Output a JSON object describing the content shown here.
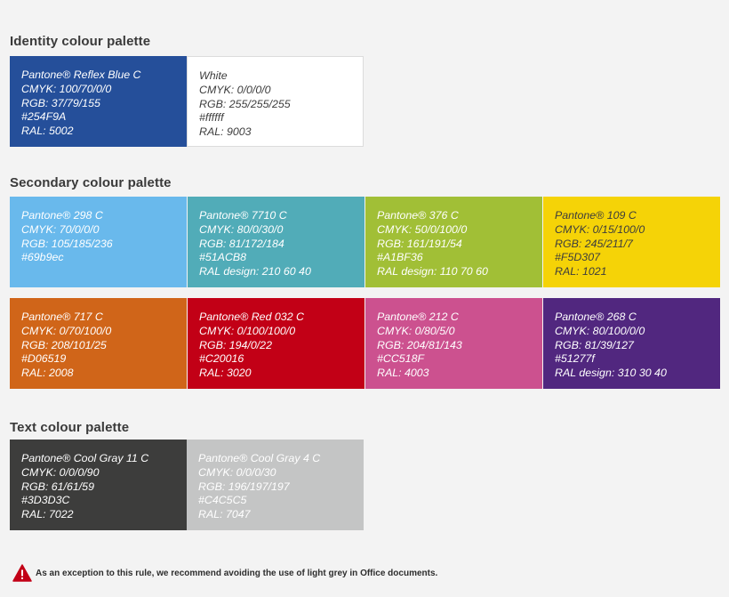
{
  "identity": {
    "title": "Identity colour palette",
    "swatches": [
      {
        "bg": "#254F9A",
        "text_color": "#ffffff",
        "lines": [
          "Pantone® Reflex Blue C",
          "CMYK: 100/70/0/0",
          "RGB: 37/79/155",
          "#254F9A",
          "RAL: 5002"
        ]
      },
      {
        "bg": "#ffffff",
        "text_color": "#3d3d3d",
        "lines": [
          "White",
          "CMYK: 0/0/0/0",
          "RGB: 255/255/255",
          "#ffffff",
          "RAL: 9003"
        ]
      }
    ]
  },
  "secondary": {
    "title": "Secondary colour palette",
    "swatches": [
      {
        "bg": "#69b9ec",
        "text_color": "#ffffff",
        "lines": [
          "Pantone® 298 C",
          "CMYK: 70/0/0/0",
          "RGB: 105/185/236",
          "#69b9ec"
        ]
      },
      {
        "bg": "#51ACB8",
        "text_color": "#ffffff",
        "lines": [
          "Pantone® 7710 C",
          "CMYK: 80/0/30/0",
          "RGB: 81/172/184",
          "#51ACB8",
          "RAL design: 210 60 40"
        ]
      },
      {
        "bg": "#A1BF36",
        "text_color": "#ffffff",
        "lines": [
          "Pantone® 376 C",
          "CMYK: 50/0/100/0",
          "RGB: 161/191/54",
          "#A1BF36",
          "RAL design: 110 70 60"
        ]
      },
      {
        "bg": "#F5D307",
        "text_color": "#3d3d3d",
        "lines": [
          "Pantone® 109 C",
          "CMYK: 0/15/100/0",
          "RGB: 245/211/7",
          "#F5D307",
          "RAL: 1021"
        ]
      },
      {
        "bg": "#D06519",
        "text_color": "#ffffff",
        "lines": [
          "Pantone® 717 C",
          "CMYK: 0/70/100/0",
          "RGB: 208/101/25",
          "#D06519",
          "RAL: 2008"
        ]
      },
      {
        "bg": "#C20016",
        "text_color": "#ffffff",
        "lines": [
          "Pantone® Red 032 C",
          "CMYK: 0/100/100/0",
          "RGB: 194/0/22",
          "#C20016",
          "RAL: 3020"
        ]
      },
      {
        "bg": "#CC518F",
        "text_color": "#ffffff",
        "lines": [
          "Pantone® 212 C",
          "CMYK: 0/80/5/0",
          "RGB: 204/81/143",
          "#CC518F",
          "RAL: 4003"
        ]
      },
      {
        "bg": "#51277f",
        "text_color": "#ffffff",
        "lines": [
          "Pantone® 268 C",
          "CMYK: 80/100/0/0",
          "RGB: 81/39/127",
          "#51277f",
          "RAL design: 310 30 40"
        ]
      }
    ]
  },
  "text_palette": {
    "title": "Text colour palette",
    "swatches": [
      {
        "bg": "#3D3D3C",
        "text_color": "#ffffff",
        "lines": [
          "Pantone® Cool Gray 11 C",
          "CMYK: 0/0/0/90",
          "RGB: 61/61/59",
          "#3D3D3C",
          "RAL: 7022"
        ]
      },
      {
        "bg": "#C4C5C5",
        "text_color": "#ffffff",
        "lines": [
          "Pantone® Cool Gray 4 C",
          "CMYK: 0/0/0/30",
          "RGB: 196/197/197",
          "#C4C5C5",
          "RAL: 7047"
        ]
      }
    ]
  },
  "note": {
    "icon": "warning-triangle-icon",
    "icon_color": "#C20016",
    "text": "As an exception to this rule, we recommend avoiding the use of light grey in Office documents."
  }
}
